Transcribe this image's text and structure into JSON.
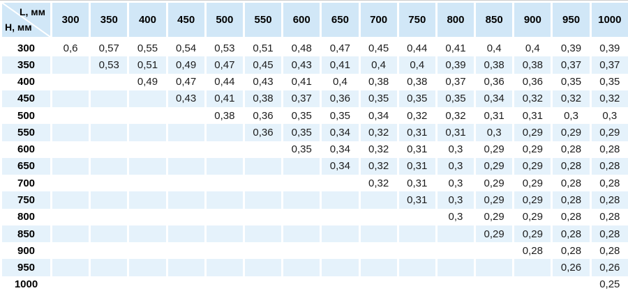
{
  "colors": {
    "header_bg": "#d1e7f7",
    "alt_row_bg": "#e5f2fb",
    "topline": "#cbcbcb",
    "text": "#000000",
    "value_text": "#1c1c1c"
  },
  "chart_data": {
    "type": "table",
    "corner_top_label": "L, мм",
    "corner_bottom_label": "H, мм",
    "column_headers": [
      "300",
      "350",
      "400",
      "450",
      "500",
      "550",
      "600",
      "650",
      "700",
      "750",
      "800",
      "850",
      "900",
      "950",
      "1000"
    ],
    "row_headers": [
      "300",
      "350",
      "400",
      "450",
      "500",
      "550",
      "600",
      "650",
      "700",
      "750",
      "800",
      "850",
      "900",
      "950",
      "1000"
    ],
    "values": [
      [
        "0,6",
        "0,57",
        "0,55",
        "0,54",
        "0,53",
        "0,51",
        "0,48",
        "0,47",
        "0,45",
        "0,44",
        "0,41",
        "0,4",
        "0,4",
        "0,39",
        "0,39"
      ],
      [
        "",
        "0,53",
        "0,51",
        "0,49",
        "0,47",
        "0,45",
        "0,43",
        "0,41",
        "0,4",
        "0,4",
        "0,39",
        "0,38",
        "0,38",
        "0,37",
        "0,37"
      ],
      [
        "",
        "",
        "0,49",
        "0,47",
        "0,44",
        "0,43",
        "0,41",
        "0,4",
        "0,38",
        "0,38",
        "0,37",
        "0,36",
        "0,36",
        "0,35",
        "0,35"
      ],
      [
        "",
        "",
        "",
        "0,43",
        "0,41",
        "0,38",
        "0,37",
        "0,36",
        "0,35",
        "0,35",
        "0,35",
        "0,34",
        "0,32",
        "0,32",
        "0,32"
      ],
      [
        "",
        "",
        "",
        "",
        "0,38",
        "0,36",
        "0,35",
        "0,35",
        "0,34",
        "0,32",
        "0,32",
        "0,31",
        "0,31",
        "0,3",
        "0,3"
      ],
      [
        "",
        "",
        "",
        "",
        "",
        "0,36",
        "0,35",
        "0,34",
        "0,32",
        "0,31",
        "0,31",
        "0,3",
        "0,29",
        "0,29",
        "0,29"
      ],
      [
        "",
        "",
        "",
        "",
        "",
        "",
        "0,35",
        "0,34",
        "0,32",
        "0,31",
        "0,3",
        "0,29",
        "0,29",
        "0,28",
        "0,28"
      ],
      [
        "",
        "",
        "",
        "",
        "",
        "",
        "",
        "0,34",
        "0,32",
        "0,31",
        "0,3",
        "0,29",
        "0,29",
        "0,28",
        "0,28"
      ],
      [
        "",
        "",
        "",
        "",
        "",
        "",
        "",
        "",
        "0,32",
        "0,31",
        "0,3",
        "0,29",
        "0,29",
        "0,28",
        "0,28"
      ],
      [
        "",
        "",
        "",
        "",
        "",
        "",
        "",
        "",
        "",
        "0,31",
        "0,3",
        "0,29",
        "0,29",
        "0,28",
        "0,28"
      ],
      [
        "",
        "",
        "",
        "",
        "",
        "",
        "",
        "",
        "",
        "",
        "0,3",
        "0,29",
        "0,29",
        "0,28",
        "0,28"
      ],
      [
        "",
        "",
        "",
        "",
        "",
        "",
        "",
        "",
        "",
        "",
        "",
        "0,29",
        "0,29",
        "0,28",
        "0,28"
      ],
      [
        "",
        "",
        "",
        "",
        "",
        "",
        "",
        "",
        "",
        "",
        "",
        "",
        "0,28",
        "0,28",
        "0,28"
      ],
      [
        "",
        "",
        "",
        "",
        "",
        "",
        "",
        "",
        "",
        "",
        "",
        "",
        "",
        "0,26",
        "0,26"
      ],
      [
        "",
        "",
        "",
        "",
        "",
        "",
        "",
        "",
        "",
        "",
        "",
        "",
        "",
        "",
        "0,25"
      ]
    ],
    "layout": {
      "grid": "white 3px column separators",
      "alternating_rows": true,
      "legend": "none",
      "title": "none"
    }
  }
}
